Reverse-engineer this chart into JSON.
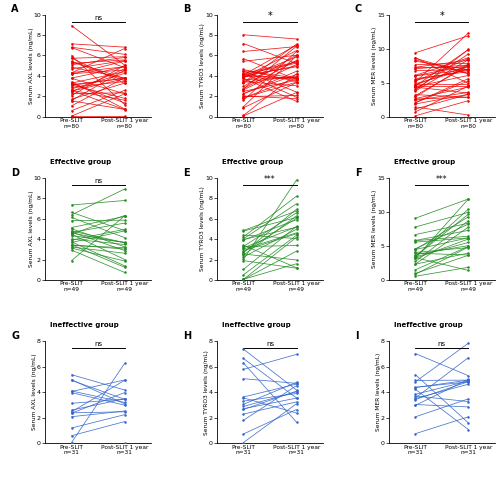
{
  "panels": [
    {
      "label": "A",
      "row": 0,
      "col": 0,
      "ylabel": "Serum AXL levels (ng/mL)",
      "ylim": [
        0,
        10
      ],
      "yticks": [
        0,
        2,
        4,
        6,
        8,
        10
      ],
      "color": "#EE0000",
      "sig": "ns",
      "x_labels": [
        "Pre-SLIT",
        "Post-SLIT 1 year"
      ],
      "ns_bottom": [
        "n=80",
        "n=80"
      ],
      "pre_mean": 3.5,
      "post_mean": 3.6,
      "pre_std": 1.8,
      "post_std": 1.8,
      "correlation": 0.3,
      "n_lines": 40
    },
    {
      "label": "B",
      "row": 0,
      "col": 1,
      "ylabel": "Serum TYRO3 levels (ng/mL)",
      "ylim": [
        0,
        10
      ],
      "yticks": [
        0,
        2,
        4,
        6,
        8,
        10
      ],
      "color": "#EE0000",
      "sig": "*",
      "x_labels": [
        "Pre-SLIT",
        "Post-SLIT 1 year"
      ],
      "ns_bottom": [
        "n=80",
        "n=80"
      ],
      "pre_mean": 3.5,
      "post_mean": 4.5,
      "pre_std": 1.8,
      "post_std": 2.0,
      "correlation": 0.5,
      "n_lines": 40
    },
    {
      "label": "C",
      "row": 0,
      "col": 2,
      "ylabel": "Serum MER levels (ng/mL)",
      "ylim": [
        0,
        15
      ],
      "yticks": [
        0,
        5,
        10,
        15
      ],
      "color": "#EE0000",
      "sig": "*",
      "x_labels": [
        "Pre-SLIT",
        "Post-SLIT 1 year"
      ],
      "ns_bottom": [
        "n=80",
        "n=80"
      ],
      "pre_mean": 4.5,
      "post_mean": 6.0,
      "pre_std": 2.2,
      "post_std": 2.5,
      "correlation": 0.5,
      "n_lines": 40
    },
    {
      "label": "D",
      "row": 1,
      "col": 0,
      "ylabel": "Serum AXL levels (ng/mL)",
      "ylim": [
        0,
        10
      ],
      "yticks": [
        0,
        2,
        4,
        6,
        8,
        10
      ],
      "color": "#228B22",
      "sig": "ns",
      "title": "Effective group",
      "x_labels": [
        "Pre-SLIT",
        "Post-SLIT 1 year"
      ],
      "ns_bottom": [
        "n=49",
        "n=49"
      ],
      "pre_mean": 3.8,
      "post_mean": 3.9,
      "pre_std": 1.8,
      "post_std": 1.8,
      "correlation": 0.3,
      "n_lines": 25
    },
    {
      "label": "E",
      "row": 1,
      "col": 1,
      "ylabel": "Serum TYRO3 levels (ng/mL)",
      "ylim": [
        0,
        10
      ],
      "yticks": [
        0,
        2,
        4,
        6,
        8,
        10
      ],
      "color": "#228B22",
      "sig": "***",
      "title": "Effective group",
      "x_labels": [
        "Pre-SLIT",
        "Post-SLIT 1 year"
      ],
      "ns_bottom": [
        "n=49",
        "n=49"
      ],
      "pre_mean": 3.0,
      "post_mean": 5.5,
      "pre_std": 1.8,
      "post_std": 2.0,
      "correlation": 0.5,
      "n_lines": 25
    },
    {
      "label": "F",
      "row": 1,
      "col": 2,
      "ylabel": "Serum MER levels (ng/mL)",
      "ylim": [
        0,
        15
      ],
      "yticks": [
        0,
        5,
        10,
        15
      ],
      "color": "#228B22",
      "sig": "***",
      "title": "Effective group",
      "x_labels": [
        "Pre-SLIT",
        "Post-SLIT 1 year"
      ],
      "ns_bottom": [
        "n=49",
        "n=49"
      ],
      "pre_mean": 4.0,
      "post_mean": 7.0,
      "pre_std": 2.0,
      "post_std": 2.5,
      "correlation": 0.5,
      "n_lines": 25
    },
    {
      "label": "G",
      "row": 2,
      "col": 0,
      "ylabel": "Serum AXL levels (ng/mL)",
      "ylim": [
        0,
        8
      ],
      "yticks": [
        0,
        2,
        4,
        6,
        8
      ],
      "color": "#3366CC",
      "sig": "ns",
      "title": "Ineffective group",
      "x_labels": [
        "Pre-SLIT",
        "Post-SLIT 1 year"
      ],
      "ns_bottom": [
        "n=31",
        "n=31"
      ],
      "pre_mean": 2.8,
      "post_mean": 2.9,
      "pre_std": 1.5,
      "post_std": 1.5,
      "correlation": 0.3,
      "n_lines": 16
    },
    {
      "label": "H",
      "row": 2,
      "col": 1,
      "ylabel": "Serum TYRO3 levels (ng/mL)",
      "ylim": [
        0,
        8
      ],
      "yticks": [
        0,
        2,
        4,
        6,
        8
      ],
      "color": "#3366CC",
      "sig": "ns",
      "title": "Ineffective group",
      "x_labels": [
        "Pre-SLIT",
        "Post-SLIT 1 year"
      ],
      "ns_bottom": [
        "n=31",
        "n=31"
      ],
      "pre_mean": 3.5,
      "post_mean": 3.6,
      "pre_std": 1.8,
      "post_std": 1.8,
      "correlation": 0.3,
      "n_lines": 16
    },
    {
      "label": "I",
      "row": 2,
      "col": 2,
      "ylabel": "Serum MER levels (ng/mL)",
      "ylim": [
        0,
        8
      ],
      "yticks": [
        0,
        2,
        4,
        6,
        8
      ],
      "color": "#3366CC",
      "sig": "ns",
      "title": "Ineffective group",
      "x_labels": [
        "Pre-SLIT",
        "Post-SLIT 1 year"
      ],
      "ns_bottom": [
        "n=31",
        "n=31"
      ],
      "pre_mean": 3.5,
      "post_mean": 3.7,
      "pre_std": 1.8,
      "post_std": 1.8,
      "correlation": 0.3,
      "n_lines": 16
    }
  ],
  "fig_width": 5.0,
  "fig_height": 4.87,
  "dpi": 100
}
